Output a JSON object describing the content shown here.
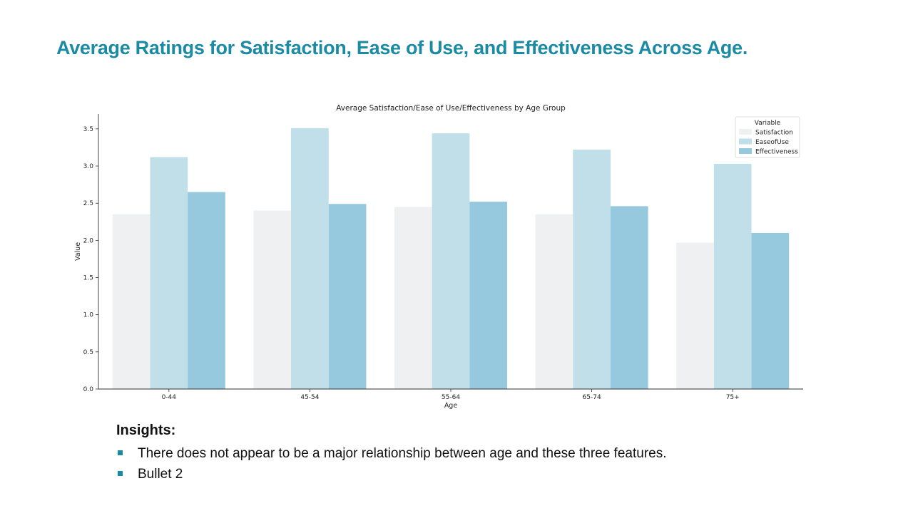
{
  "slide": {
    "title": "Average Ratings for Satisfaction, Ease of Use, and Effectiveness Across Age.",
    "title_color": "#1b8aa3"
  },
  "insights": {
    "heading": "Insights:",
    "bullets": [
      "There does not appear to be a major relationship between age and these three features.",
      "Bullet 2"
    ],
    "bullet_color": "#1b8aa3"
  },
  "chart_data": {
    "type": "bar",
    "title": "Average Satisfaction/Ease of Use/Effectiveness by Age Group",
    "xlabel": "Age",
    "ylabel": "Value",
    "ylim": [
      0,
      3.7
    ],
    "yticks": [
      "0.0",
      "0.5",
      "1.0",
      "1.5",
      "2.0",
      "2.5",
      "3.0",
      "3.5"
    ],
    "categories": [
      "0-44",
      "45-54",
      "55-64",
      "65-74",
      "75+"
    ],
    "legend_title": "Variable",
    "legend_position": "top-right",
    "grid": false,
    "series": [
      {
        "name": "Satisfaction",
        "color": "#eff0f1",
        "values": [
          2.35,
          2.4,
          2.45,
          2.35,
          1.97
        ]
      },
      {
        "name": "EaseofUse",
        "color": "#c0dfe9",
        "values": [
          3.12,
          3.51,
          3.44,
          3.22,
          3.03
        ]
      },
      {
        "name": "Effectiveness",
        "color": "#96c9de",
        "values": [
          2.65,
          2.49,
          2.52,
          2.46,
          2.1
        ]
      }
    ]
  }
}
